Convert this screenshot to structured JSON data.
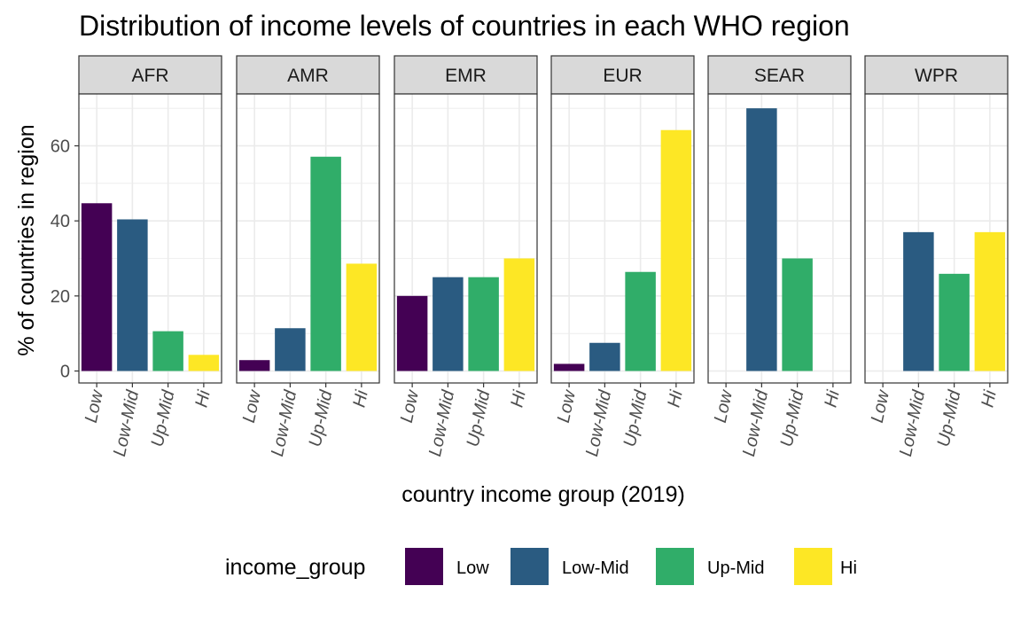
{
  "chart_data": {
    "type": "bar",
    "title": "Distribution of income levels of countries in each WHO region",
    "xlabel": "country income group (2019)",
    "ylabel": "% of countries in region",
    "ylim": [
      0,
      74
    ],
    "yticks": [
      0,
      20,
      40,
      60
    ],
    "grid": true,
    "categories": [
      "Low",
      "Low-Mid",
      "Up-Mid",
      "Hi"
    ],
    "panels": [
      {
        "name": "AFR",
        "values": [
          44.7,
          40.4,
          10.6,
          4.3
        ]
      },
      {
        "name": "AMR",
        "values": [
          2.9,
          11.4,
          57.1,
          28.6
        ]
      },
      {
        "name": "EMR",
        "values": [
          20.0,
          25.0,
          25.0,
          30.0
        ]
      },
      {
        "name": "EUR",
        "values": [
          1.9,
          7.5,
          26.4,
          64.2
        ]
      },
      {
        "name": "SEAR",
        "values": [
          0,
          70.0,
          30.0,
          0
        ]
      },
      {
        "name": "WPR",
        "values": [
          0,
          37.0,
          25.9,
          37.0
        ]
      }
    ],
    "legend": {
      "title": "income_group",
      "position": "bottom",
      "items": [
        "Low",
        "Low-Mid",
        "Up-Mid",
        "Hi"
      ]
    },
    "colors": {
      "Low": "#440154",
      "Low-Mid": "#2a5b81",
      "Up-Mid": "#30ad69",
      "Hi": "#fde725",
      "strip": "#d9d9d9",
      "grid": "#ebebeb"
    }
  }
}
